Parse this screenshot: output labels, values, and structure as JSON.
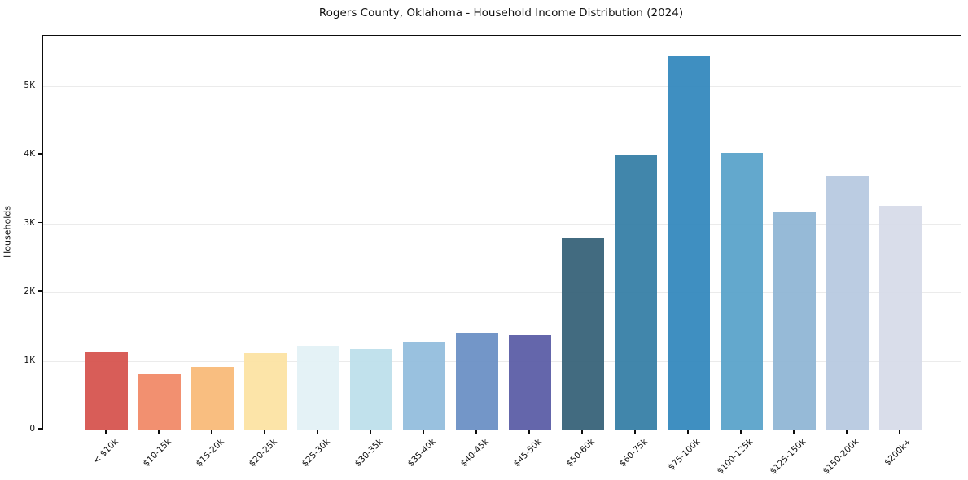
{
  "chart_data": {
    "type": "bar",
    "title": "Rogers County, Oklahoma - Household Income Distribution (2024)",
    "xlabel": "",
    "ylabel": "Households",
    "categories": [
      "< $10k",
      "$10-15k",
      "$15-20k",
      "$20-25k",
      "$25-30k",
      "$30-35k",
      "$35-40k",
      "$40-45k",
      "$45-50k",
      "$50-60k",
      "$60-75k",
      "$75-100k",
      "$100-125k",
      "$125-150k",
      "$150-200k",
      "$200k+"
    ],
    "values": [
      1130,
      800,
      910,
      1110,
      1220,
      1170,
      1280,
      1410,
      1370,
      2780,
      4000,
      5440,
      4020,
      3170,
      3690,
      3260
    ],
    "bar_colors": [
      "#d6544f",
      "#f18a68",
      "#f9ba79",
      "#fce3a3",
      "#e3f1f6",
      "#bedfeb",
      "#93bedd",
      "#6c90c5",
      "#5c5ea7",
      "#386379",
      "#3780a6",
      "#3589be",
      "#5ba3ca",
      "#90b6d5",
      "#b7c9e0",
      "#d7dbe9"
    ],
    "ylim": [
      0,
      5730
    ],
    "yticks": [
      {
        "value": 0,
        "label": "0"
      },
      {
        "value": 1000,
        "label": "1K"
      },
      {
        "value": 2000,
        "label": "2K"
      },
      {
        "value": 3000,
        "label": "3K"
      },
      {
        "value": 4000,
        "label": "4K"
      },
      {
        "value": 5000,
        "label": "5K"
      }
    ],
    "grid": "horizontal",
    "legend": "none"
  }
}
